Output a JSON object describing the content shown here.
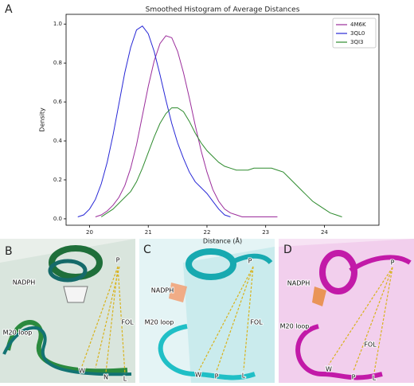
{
  "panel_label": "A",
  "chart_data": {
    "type": "line",
    "title": "Smoothed Histogram of Average Distances",
    "x_label": "Distance (Å)",
    "y_label": "Density",
    "x": [
      19.8,
      19.9,
      20.0,
      20.1,
      20.2,
      20.3,
      20.4,
      20.5,
      20.6,
      20.7,
      20.8,
      20.9,
      21.0,
      21.1,
      21.2,
      21.3,
      21.4,
      21.5,
      21.6,
      21.7,
      21.8,
      21.9,
      22.0,
      22.1,
      22.2,
      22.3,
      22.4,
      22.5,
      22.6,
      22.7,
      22.8,
      22.9,
      23.0,
      23.1,
      23.2,
      23.3,
      23.4,
      23.5,
      23.6,
      23.7,
      23.8,
      23.9,
      24.0,
      24.1,
      24.2,
      24.3
    ],
    "series": [
      {
        "name": "4M6K",
        "color": "#9b2d9b",
        "values": [
          null,
          null,
          null,
          0.01,
          0.02,
          0.04,
          0.07,
          0.11,
          0.17,
          0.26,
          0.38,
          0.53,
          0.68,
          0.81,
          0.9,
          0.94,
          0.93,
          0.86,
          0.75,
          0.62,
          0.48,
          0.35,
          0.24,
          0.15,
          0.09,
          0.05,
          0.03,
          0.02,
          0.01,
          0.01,
          0.01,
          0.01,
          0.01,
          0.01,
          0.01,
          null,
          null,
          null,
          null,
          null,
          null,
          null,
          null,
          null,
          null,
          null
        ]
      },
      {
        "name": "3QL0",
        "color": "#2727d6",
        "values": [
          0.01,
          0.02,
          0.05,
          0.1,
          0.18,
          0.29,
          0.43,
          0.59,
          0.75,
          0.88,
          0.97,
          0.99,
          0.95,
          0.86,
          0.74,
          0.61,
          0.49,
          0.39,
          0.31,
          0.24,
          0.19,
          0.16,
          0.13,
          0.09,
          0.05,
          0.02,
          0.01,
          null,
          null,
          null,
          null,
          null,
          null,
          null,
          null,
          null,
          null,
          null,
          null,
          null,
          null,
          null,
          null,
          null,
          null,
          null
        ]
      },
      {
        "name": "3QI3",
        "color": "#2e8b2e",
        "values": [
          null,
          null,
          null,
          null,
          0.01,
          0.03,
          0.05,
          0.08,
          0.11,
          0.14,
          0.19,
          0.26,
          0.34,
          0.42,
          0.49,
          0.54,
          0.57,
          0.57,
          0.55,
          0.5,
          0.44,
          0.39,
          0.35,
          0.32,
          0.29,
          0.27,
          0.26,
          0.25,
          0.25,
          0.25,
          0.26,
          0.26,
          0.26,
          0.26,
          0.25,
          0.24,
          0.21,
          0.18,
          0.15,
          0.12,
          0.09,
          0.07,
          0.05,
          0.03,
          0.02,
          0.01
        ]
      }
    ],
    "xlim": [
      19.6,
      24.93
    ],
    "ylim": [
      -0.033,
      1.05
    ],
    "xticks": [
      20,
      21,
      22,
      23,
      24
    ],
    "yticks": [
      {
        "value": 0,
        "label": "0.0"
      },
      0.2,
      0.4,
      0.6,
      0.8,
      {
        "value": 1,
        "label": "1.0"
      }
    ],
    "grid": false,
    "legend": "upper right"
  },
  "panels": [
    {
      "label": "B",
      "annotations": [
        "NADPH",
        "M20 loop",
        "FOL",
        "P",
        "W",
        "N",
        "L"
      ]
    },
    {
      "label": "C",
      "annotations": [
        "NADPH",
        "M20 loop",
        "FOL",
        "P",
        "W",
        "P",
        "L"
      ]
    },
    {
      "label": "D",
      "annotations": [
        "NADPH",
        "M20 loop",
        "FOL",
        "P",
        "W",
        "P",
        "L"
      ]
    }
  ]
}
